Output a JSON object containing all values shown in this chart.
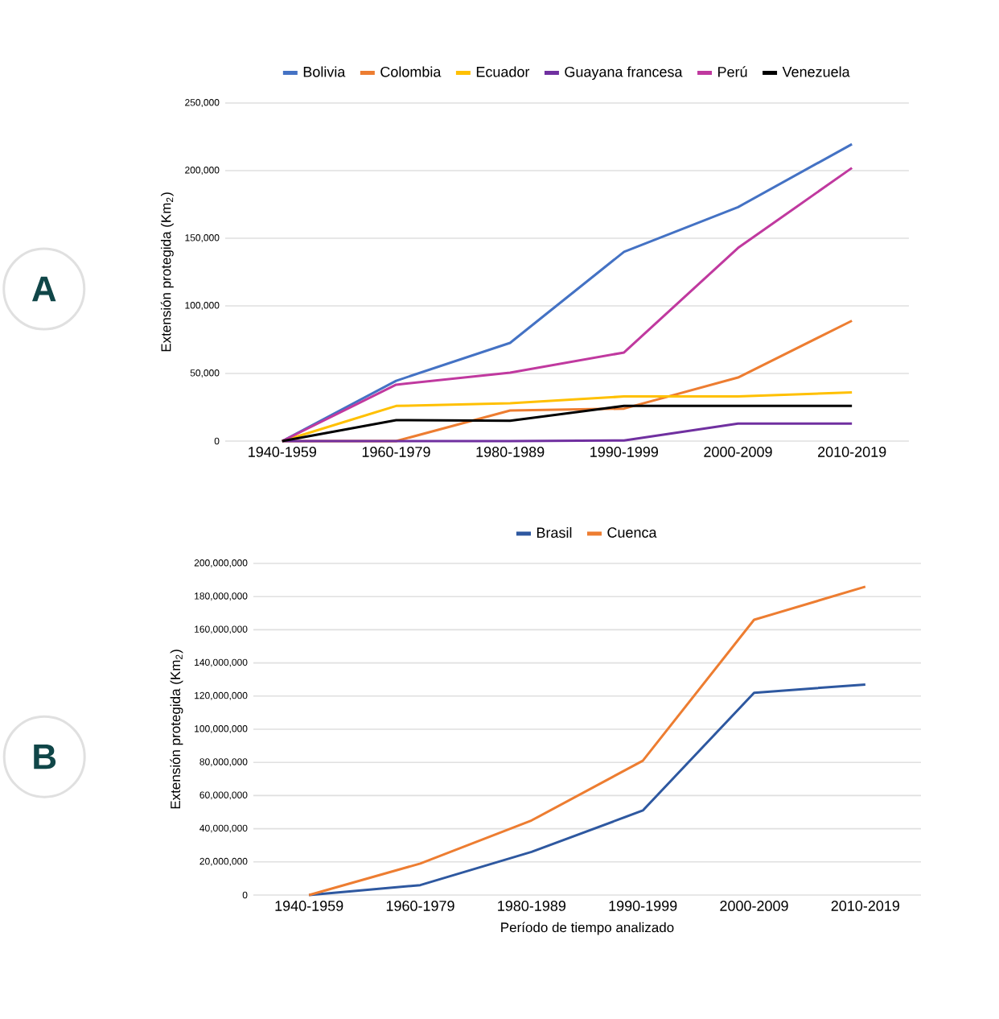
{
  "chart_data": [
    {
      "type": "line",
      "annotations": [
        "A"
      ],
      "ylabel": "Extensión protegida (Km$_{2}$)",
      "categories": [
        "1940-1959",
        "1960-1979",
        "1980-1989",
        "1990-1999",
        "2000-2009",
        "2010-2019"
      ],
      "series": [
        {
          "name": "Bolivia",
          "color": "#4472c4",
          "values": [
            0,
            44600,
            72600,
            140000,
            173000,
            219600
          ]
        },
        {
          "name": "Colombia",
          "color": "#ed7d31",
          "values": [
            0,
            0,
            22600,
            24000,
            47000,
            89000
          ]
        },
        {
          "name": "Ecuador",
          "color": "#ffc000",
          "values": [
            0,
            26000,
            28000,
            33000,
            33000,
            36000
          ]
        },
        {
          "name": "Guayana francesa",
          "color": "#7030a0",
          "values": [
            0,
            0,
            0,
            500,
            13000,
            13000
          ]
        },
        {
          "name": "Perú",
          "color": "#c0399f",
          "values": [
            0,
            41700,
            50600,
            65500,
            142800,
            202000
          ]
        },
        {
          "name": "Venezuela",
          "color": "#000000",
          "values": [
            0,
            15500,
            15000,
            26000,
            26000,
            26000
          ]
        }
      ],
      "ylim": [
        0,
        250000
      ],
      "yticks": [
        {
          "value": 0,
          "label": "0"
        },
        {
          "value": 50000,
          "label": "50,000"
        },
        {
          "value": 100000,
          "label": "100,000"
        },
        {
          "value": 150000,
          "label": "150,000"
        },
        {
          "value": 200000,
          "label": "200,000"
        },
        {
          "value": 250000,
          "label": "250,000"
        }
      ],
      "grid": "y",
      "legend": "top",
      "marker": "none",
      "line_style": "solid"
    },
    {
      "type": "line",
      "annotations": [
        "B"
      ],
      "ylabel": "Extensión protegida (Km$_{2}$)",
      "xlabel": "Período de tiempo analizado",
      "categories": [
        "1940-1959",
        "1960-1979",
        "1980-1989",
        "1990-1999",
        "2000-2009",
        "2010-2019"
      ],
      "series": [
        {
          "name": "Brasil",
          "color": "#2e58a0",
          "values": [
            0,
            6000000,
            26000000,
            51000000,
            122000000,
            127000000
          ]
        },
        {
          "name": "Cuenca",
          "color": "#ed7d31",
          "values": [
            0,
            19000000,
            45000000,
            81000000,
            166000000,
            186000000
          ]
        }
      ],
      "ylim": [
        0,
        200000000
      ],
      "yticks": [
        {
          "value": 0,
          "label": "0"
        },
        {
          "value": 20000000,
          "label": "20,000,000"
        },
        {
          "value": 40000000,
          "label": "40,000,000"
        },
        {
          "value": 60000000,
          "label": "60,000,000"
        },
        {
          "value": 80000000,
          "label": "80,000,000"
        },
        {
          "value": 100000000,
          "label": "100,000,000"
        },
        {
          "value": 120000000,
          "label": "120,000,000"
        },
        {
          "value": 140000000,
          "label": "140,000,000"
        },
        {
          "value": 160000000,
          "label": "160,000,000"
        },
        {
          "value": 180000000,
          "label": "180,000,000"
        },
        {
          "value": 200000000,
          "label": "200,000,000"
        }
      ],
      "grid": "y",
      "legend": "top",
      "marker": "none",
      "line_style": "solid"
    }
  ]
}
